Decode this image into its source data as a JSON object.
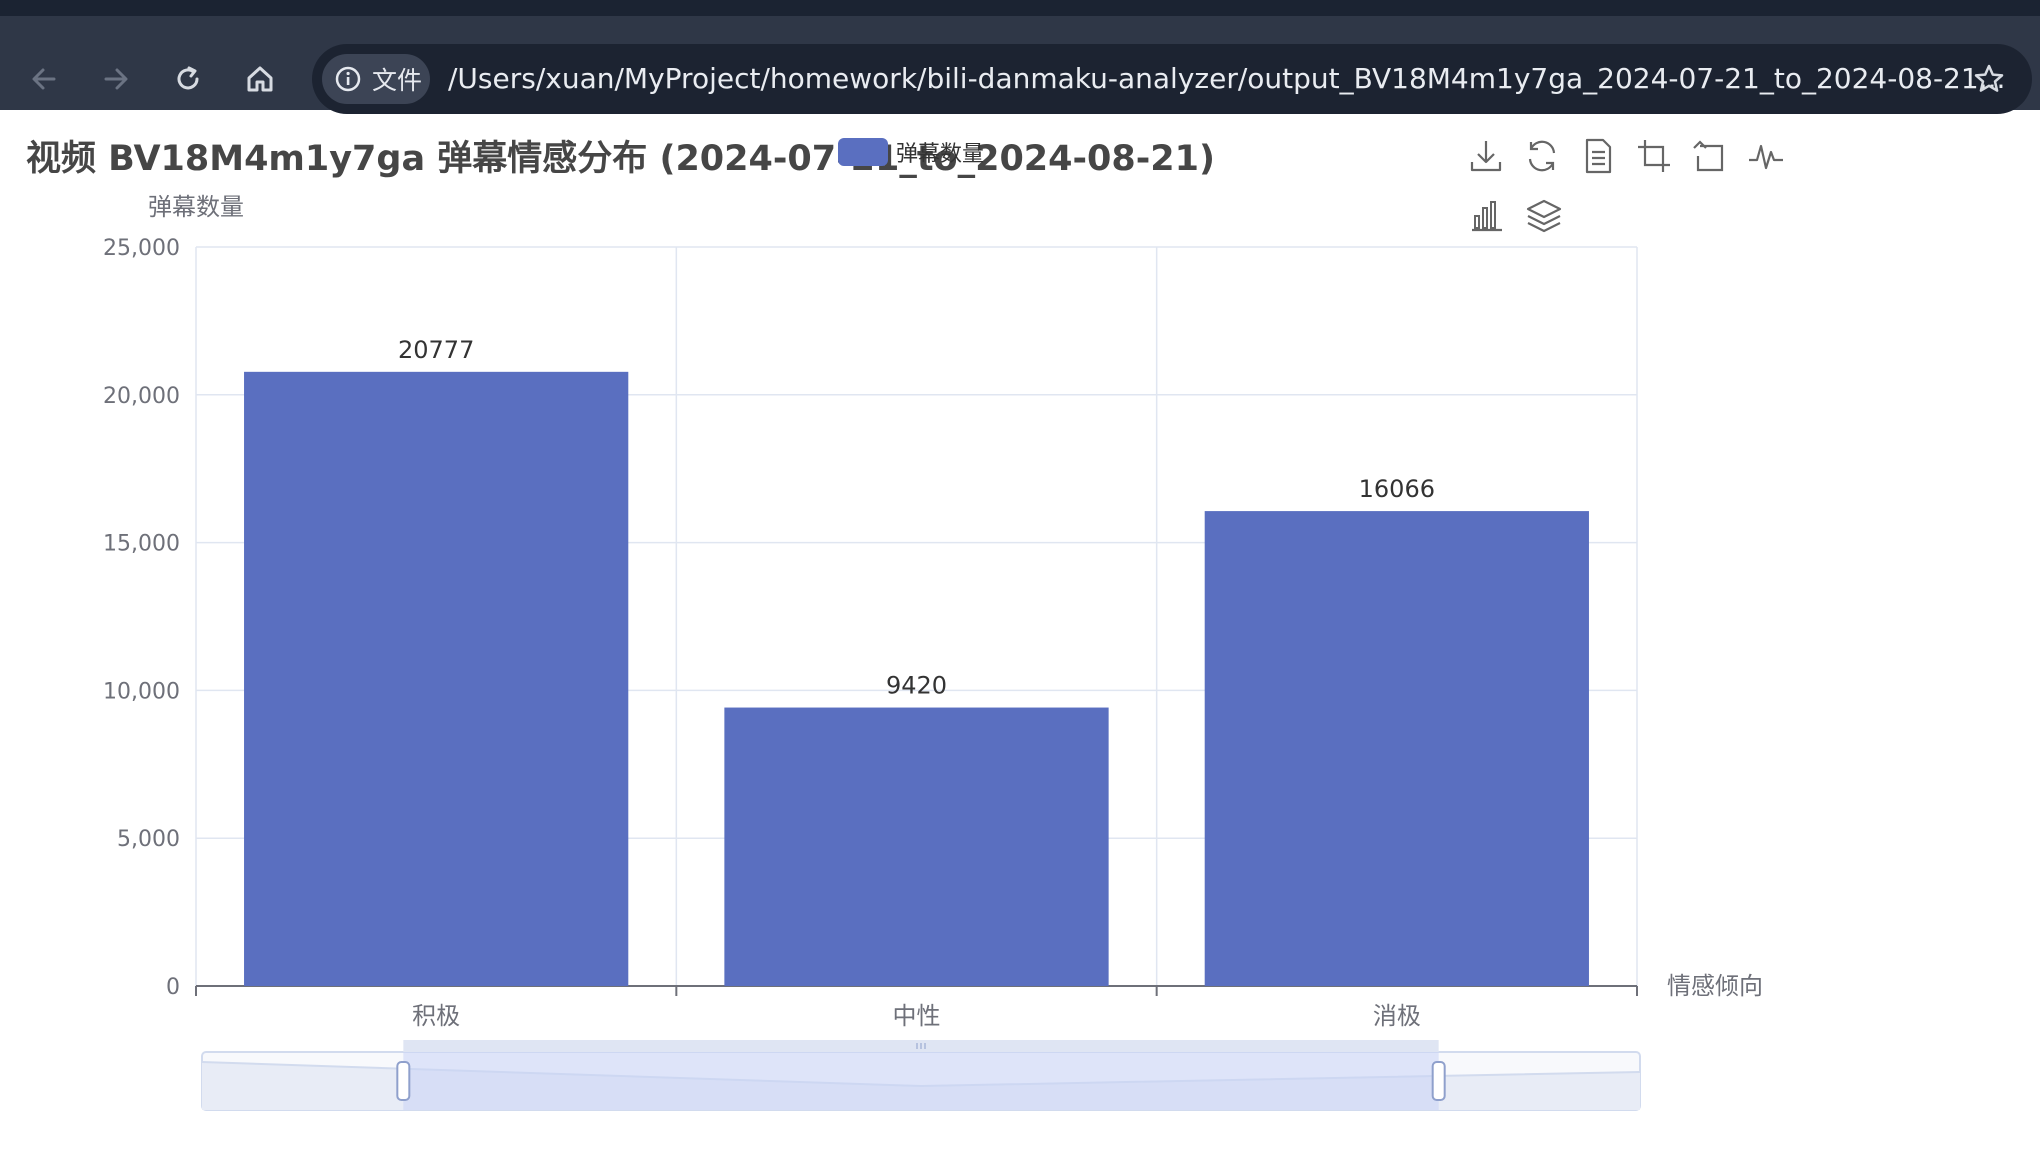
{
  "browser": {
    "site_chip_label": "文件",
    "url": "/Users/xuan/MyProject/homework/bili-danmaku-analyzer/output_BV18M4m1y7ga_2024-07-21_to_2024-08-21..."
  },
  "chart_data": {
    "type": "bar",
    "title": "视频 BV18M4m1y7ga 弹幕情感分布 (2024-07-21_to_2024-08-21)",
    "xlabel": "情感倾向",
    "ylabel": "弹幕数量",
    "legend": [
      "弹幕数量"
    ],
    "legend_position": "top-center",
    "categories": [
      "积极",
      "中性",
      "消极"
    ],
    "series": [
      {
        "name": "弹幕数量",
        "values": [
          20777,
          9420,
          16066
        ]
      }
    ],
    "ylim": [
      0,
      25000
    ],
    "y_ticks": [
      "0",
      "5,000",
      "10,000",
      "15,000",
      "20,000",
      "25,000"
    ],
    "grid": true,
    "bar_color": "#5a6fc0",
    "data_zoom": {
      "start_percent": 14,
      "end_percent": 86
    }
  },
  "toolbox": [
    "download-icon",
    "refresh-icon",
    "data-view-icon",
    "zoom-icon",
    "zoom-reset-icon",
    "line-chart-icon",
    "bar-chart-icon",
    "stack-icon"
  ]
}
